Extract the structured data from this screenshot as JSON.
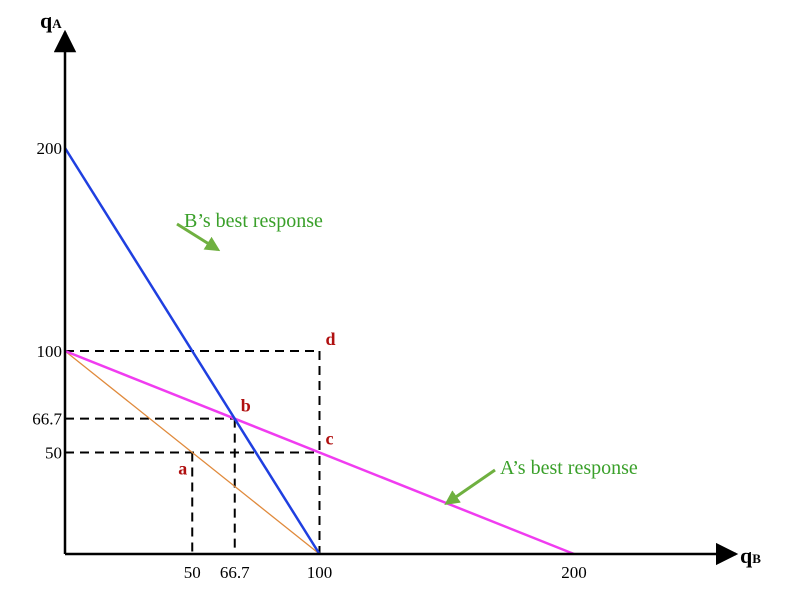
{
  "chart_data": {
    "type": "line",
    "xlabel": {
      "main": "q",
      "sub": "B"
    },
    "ylabel": {
      "main": "q",
      "sub": "A"
    },
    "xlim": [
      0,
      200
    ],
    "ylim": [
      0,
      200
    ],
    "x_ticks": [
      {
        "value": 50,
        "label": "50"
      },
      {
        "value": 66.7,
        "label": "66.7"
      },
      {
        "value": 100,
        "label": "100"
      },
      {
        "value": 200,
        "label": "200"
      }
    ],
    "y_ticks": [
      {
        "value": 200,
        "label": "200"
      },
      {
        "value": 100,
        "label": "100"
      },
      {
        "value": 66.7,
        "label": "66.7"
      },
      {
        "value": 50,
        "label": "50"
      }
    ],
    "grid": false,
    "series": [
      {
        "name": "B’s best response",
        "color": "#1f3fe0",
        "points": [
          [
            0,
            200
          ],
          [
            100,
            0
          ]
        ]
      },
      {
        "name": "A’s best response",
        "color": "#f03cf0",
        "points": [
          [
            0,
            100
          ],
          [
            200,
            0
          ]
        ]
      },
      {
        "color": "#e08a3c",
        "points": [
          [
            0,
            100
          ],
          [
            100,
            0
          ]
        ]
      }
    ],
    "points": [
      {
        "label": "a",
        "x": 50,
        "y": 50
      },
      {
        "label": "b",
        "x": 66.7,
        "y": 66.7
      },
      {
        "label": "c",
        "x": 100,
        "y": 50
      },
      {
        "label": "d",
        "x": 100,
        "y": 100
      }
    ],
    "guides": [
      {
        "from": [
          0,
          100
        ],
        "to": [
          100,
          100
        ]
      },
      {
        "from": [
          100,
          100
        ],
        "to": [
          100,
          0
        ]
      },
      {
        "from": [
          0,
          66.7
        ],
        "to": [
          66.7,
          66.7
        ]
      },
      {
        "from": [
          66.7,
          66.7
        ],
        "to": [
          66.7,
          0
        ]
      },
      {
        "from": [
          0,
          50
        ],
        "to": [
          100,
          50
        ]
      },
      {
        "from": [
          50,
          50
        ],
        "to": [
          50,
          0
        ]
      }
    ],
    "annotations": [
      {
        "text": "B’s best response",
        "target": [
          60,
          150
        ],
        "color": "#3aa02a",
        "arrow_color": "#6fb040"
      },
      {
        "text": "A’s best response",
        "target": [
          150,
          25
        ],
        "color": "#3aa02a",
        "arrow_color": "#6fb040"
      }
    ]
  }
}
